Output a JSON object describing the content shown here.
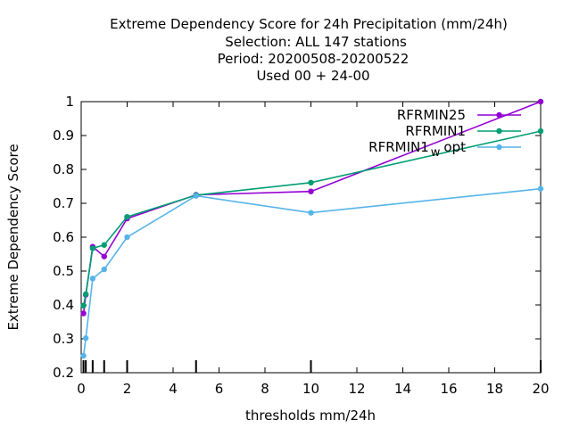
{
  "chart_data": {
    "type": "line",
    "title_lines": [
      "Extreme Dependency Score  for 24h Precipitation (mm/24h)",
      "Selection: ALL    147 stations",
      "Period: 20200508-20200522",
      "Used  00 + 24-00"
    ],
    "xlabel": "thresholds mm/24h",
    "ylabel": "Extreme Dependency Score",
    "xlim": [
      0,
      20
    ],
    "ylim": [
      0.2,
      1.0
    ],
    "x_ticks": [
      0,
      2,
      4,
      6,
      8,
      10,
      12,
      14,
      16,
      18,
      20
    ],
    "y_ticks": [
      0.2,
      0.3,
      0.4,
      0.5,
      0.6,
      0.7,
      0.8,
      0.9,
      1.0
    ],
    "x_tick_labels": [
      "0",
      "2",
      "4",
      "6",
      "8",
      "10",
      "12",
      "14",
      "16",
      "18",
      "20"
    ],
    "y_tick_labels": [
      "0.2",
      "0.3",
      "0.4",
      "0.5",
      "0.6",
      "0.7",
      "0.8",
      "0.9",
      "1"
    ],
    "threshold_marks": [
      0.1,
      0.2,
      0.5,
      1,
      2,
      5,
      10,
      20
    ],
    "legend_position": "top-right",
    "grid": false,
    "series": [
      {
        "name": "RFRMIN25",
        "color": "#9400d3",
        "x": [
          0.1,
          0.2,
          0.5,
          1,
          2,
          5,
          10,
          20
        ],
        "y": [
          0.375,
          0.43,
          0.572,
          0.543,
          0.655,
          0.725,
          0.735,
          1.0
        ]
      },
      {
        "name": "RFRMIN1",
        "color": "#009e73",
        "x": [
          0.1,
          0.2,
          0.5,
          1,
          2,
          5,
          10,
          20
        ],
        "y": [
          0.398,
          0.432,
          0.567,
          0.577,
          0.66,
          0.724,
          0.761,
          0.913
        ]
      },
      {
        "name": "RFRMIN1_w_opt",
        "legend_main": "RFRMIN1",
        "legend_sub": "w",
        "legend_tail": "opt",
        "color": "#56b4e9",
        "x": [
          0.1,
          0.2,
          0.5,
          1,
          2,
          5,
          10,
          20
        ],
        "y": [
          0.25,
          0.302,
          0.478,
          0.505,
          0.6,
          0.722,
          0.672,
          0.743
        ]
      }
    ]
  }
}
